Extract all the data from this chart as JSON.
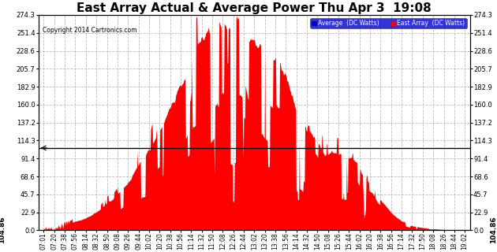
{
  "title": "East Array Actual & Average Power Thu Apr 3  19:08",
  "copyright": "Copyright 2014 Cartronics.com",
  "legend_avg_label": "Average  (DC Watts)",
  "legend_east_label": "East Array  (DC Watts)",
  "avg_line_value": 104.86,
  "avg_line_label": "104.86",
  "y_ticks": [
    0.0,
    22.9,
    45.7,
    68.6,
    91.4,
    114.3,
    137.2,
    160.0,
    182.9,
    205.7,
    228.6,
    251.4,
    274.3
  ],
  "y_max": 274.3,
  "y_min": 0.0,
  "background_color": "#ffffff",
  "fill_color": "#ff0000",
  "avg_line_color": "#000000",
  "grid_color": "#bbbbbb",
  "title_fontsize": 11,
  "x_labels": [
    "07:01",
    "07:20",
    "07:38",
    "07:56",
    "08:14",
    "08:32",
    "08:50",
    "09:08",
    "09:26",
    "09:44",
    "10:02",
    "10:20",
    "10:38",
    "10:56",
    "11:14",
    "11:32",
    "11:50",
    "12:08",
    "12:26",
    "12:44",
    "13:02",
    "13:20",
    "13:38",
    "13:56",
    "14:14",
    "14:32",
    "14:50",
    "15:08",
    "15:26",
    "15:44",
    "16:02",
    "16:20",
    "16:38",
    "16:56",
    "17:14",
    "17:32",
    "17:50",
    "18:08",
    "18:26",
    "18:44",
    "19:02"
  ]
}
